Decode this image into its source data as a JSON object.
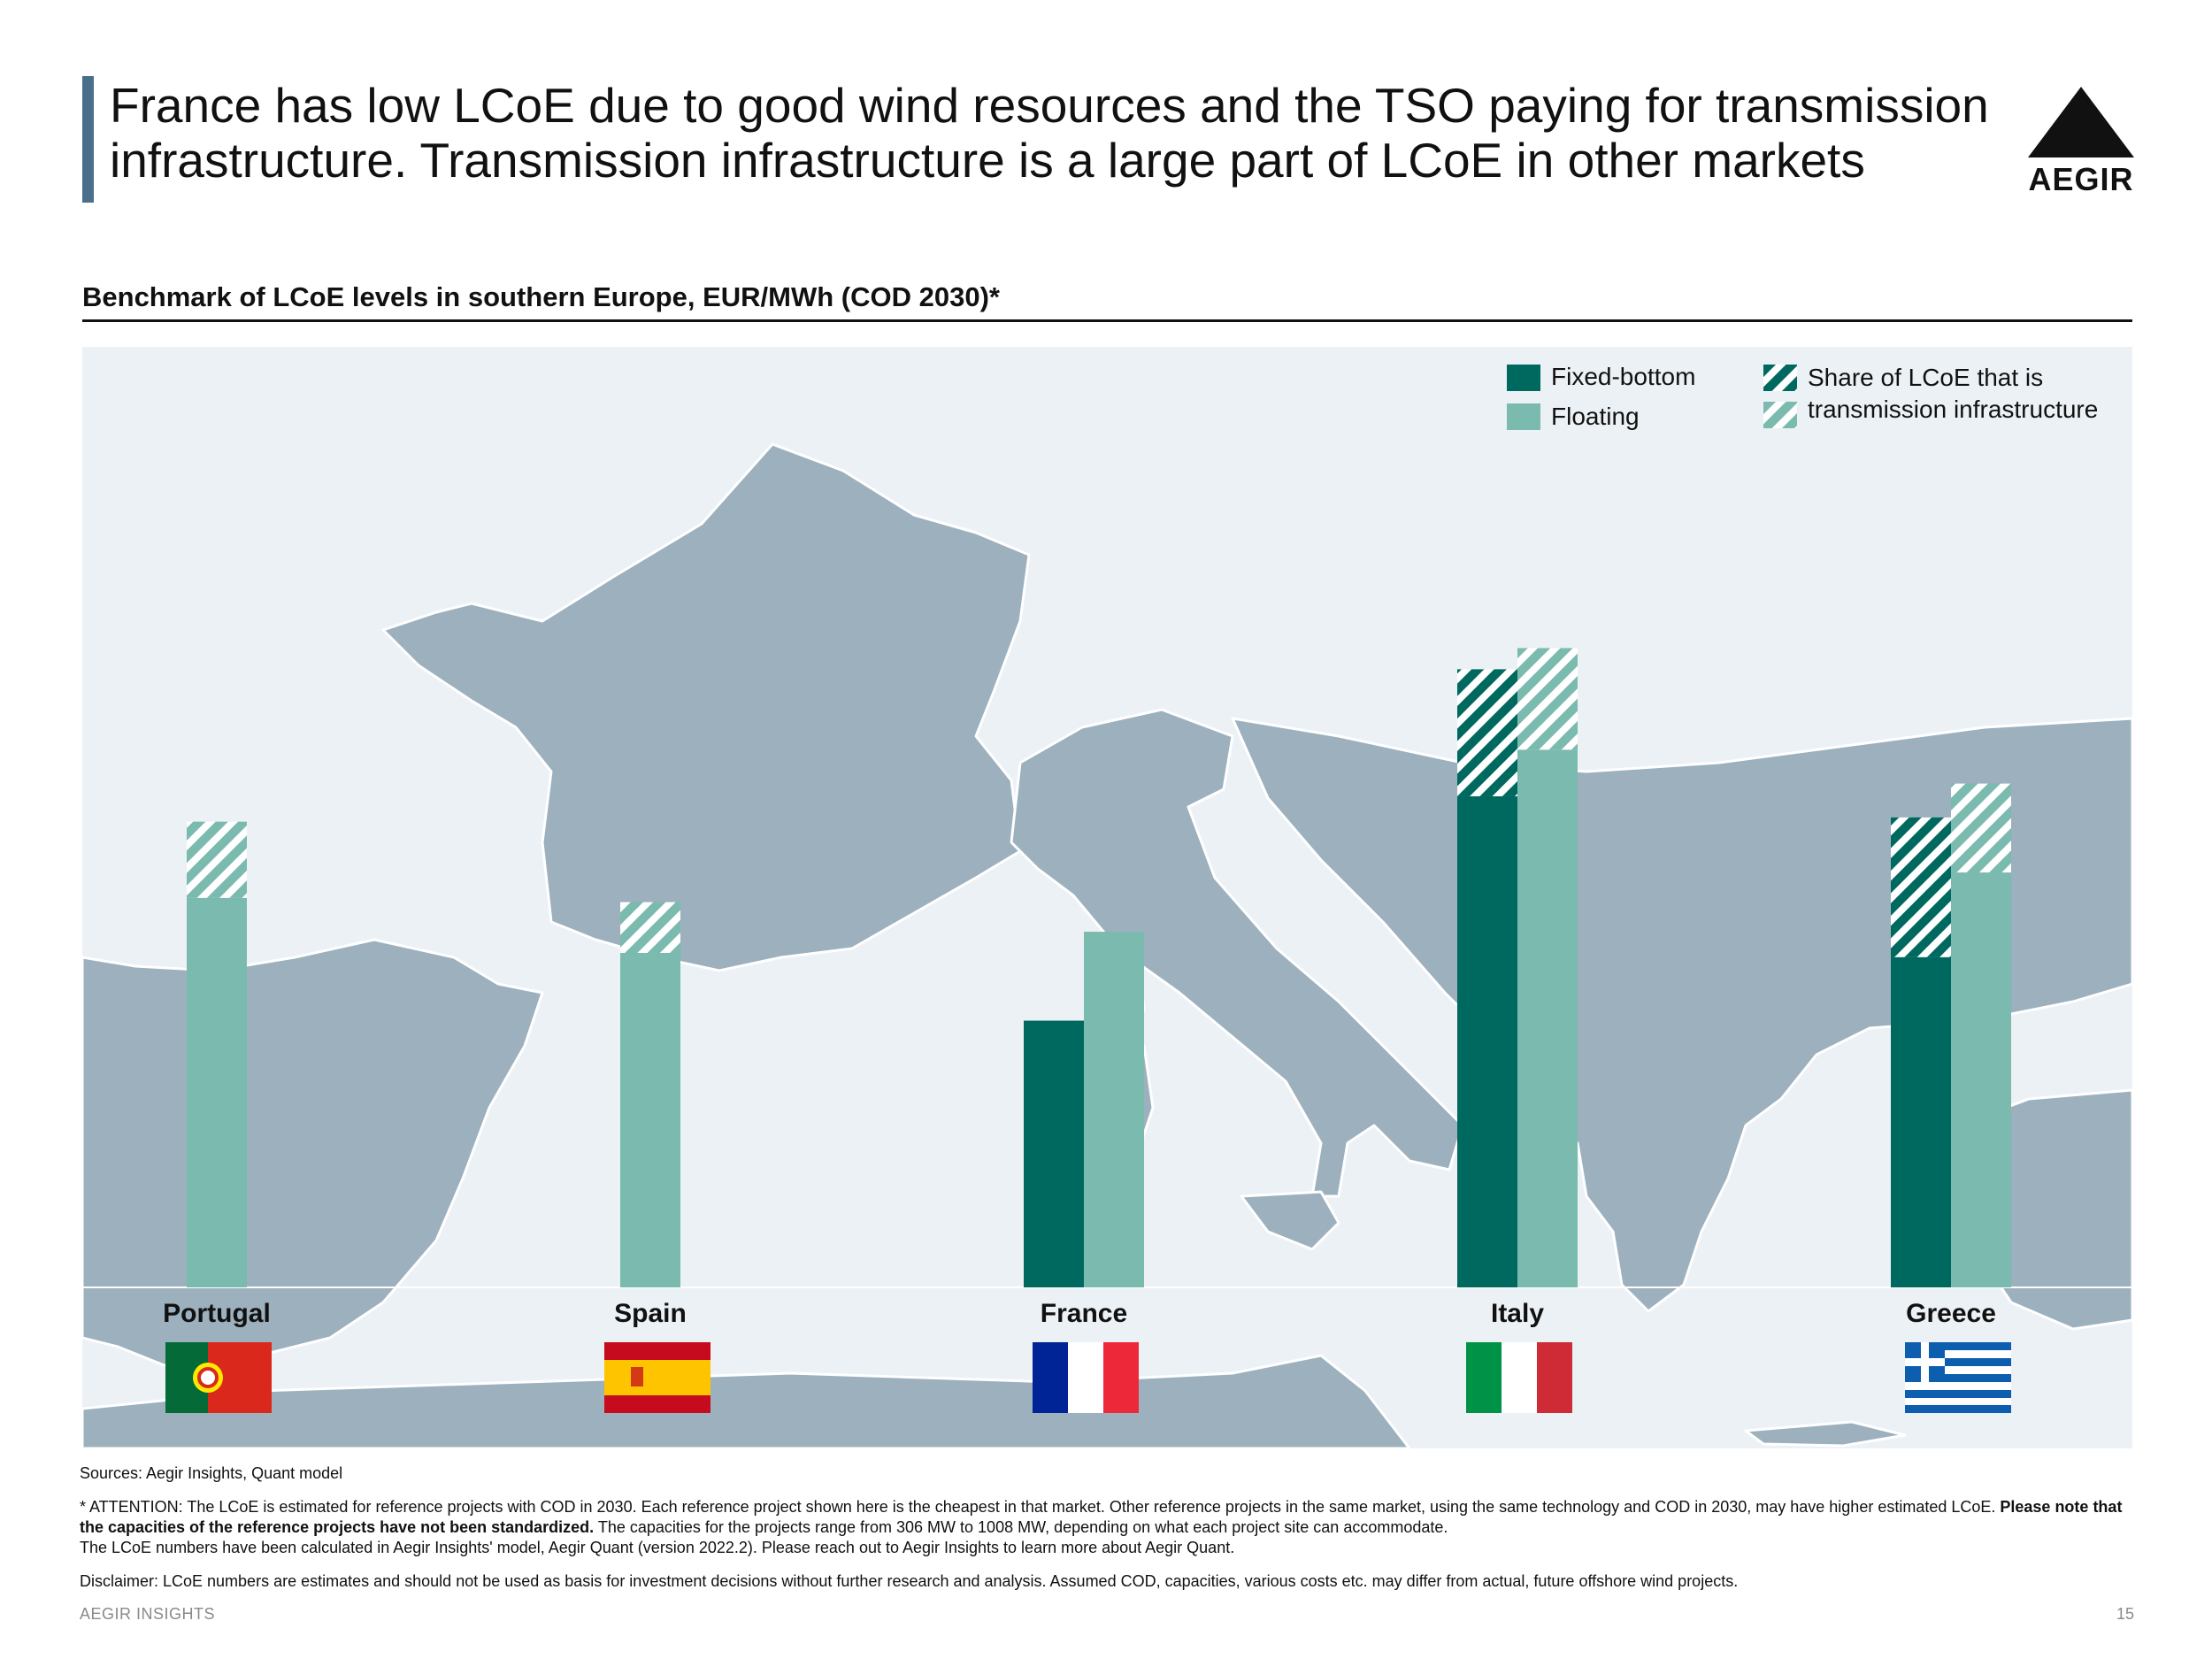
{
  "header": {
    "title": "France has low LCoE due to good wind resources and the TSO paying for transmission infrastructure. Transmission infrastructure is a large part of LCoE in other markets",
    "logo_text": "AEGIR"
  },
  "colors": {
    "fixed": "#00695f",
    "floating": "#7bbaae",
    "map_land": "#9cb0be",
    "panel_bg": "#ecf1f5",
    "title_accent": "#4a6f8a"
  },
  "legend": {
    "fixed_label": "Fixed-bottom",
    "floating_label": "Floating",
    "transmission_label_line1": "Share of LCoE that is",
    "transmission_label_line2": "transmission infrastructure"
  },
  "chart_data": {
    "type": "bar",
    "title": "Benchmark of LCoE levels in southern Europe, EUR/MWh (COD 2030)*",
    "categories": [
      "Portugal",
      "Spain",
      "France",
      "Italy",
      "Greece"
    ],
    "series": [
      {
        "name": "Fixed-bottom",
        "totals": [
          null,
          null,
          63,
          146,
          111
        ],
        "transmission": [
          null,
          null,
          0,
          30,
          33
        ]
      },
      {
        "name": "Floating",
        "totals": [
          110,
          91,
          84,
          151,
          119
        ],
        "transmission": [
          18,
          12,
          0,
          24,
          21
        ]
      }
    ],
    "xlabel": "",
    "ylabel": "EUR/MWh",
    "ylim": [
      0,
      200
    ],
    "axis_visible": false,
    "legend_position": "top-right",
    "flags": [
      "Portugal flag",
      "Spain flag",
      "France flag",
      "Italy flag",
      "Greece flag"
    ]
  },
  "footer": {
    "sources": "Sources: Aegir Insights, Quant model",
    "attention_part1": "* ATTENTION: The LCoE is estimated for reference projects with COD in 2030. Each reference project shown here is the cheapest in that market. Other reference projects in the same market, using the same technology and COD in 2030, may have higher estimated LCoE. ",
    "attention_bold": "Please note that the capacities of the reference projects have not been standardized.",
    "attention_part2": " The capacities for the projects range from 306 MW to 1008 MW, depending on what each project site can accommodate.",
    "attention_line3": "The LCoE numbers have been calculated in Aegir Insights' model, Aegir Quant (version 2022.2). Please reach out to Aegir Insights to learn more about Aegir Quant.",
    "disclaimer": "Disclaimer: LCoE numbers are estimates and should not be used as basis for investment decisions without further research and analysis. Assumed COD, capacities, various costs etc. may differ from actual, future offshore wind projects.",
    "brand": "AEGIR INSIGHTS",
    "page_number": "15"
  }
}
